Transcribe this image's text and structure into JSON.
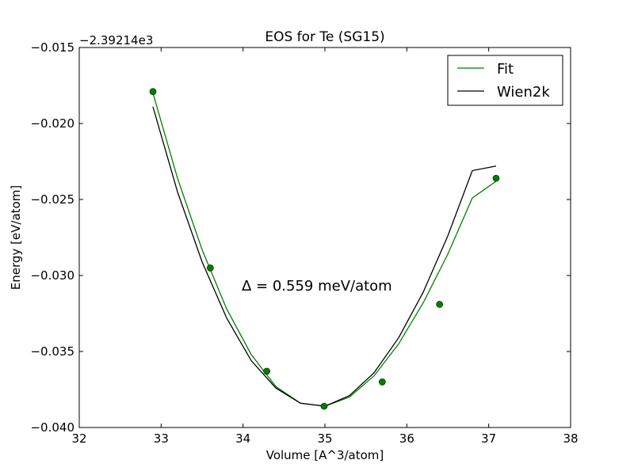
{
  "chart_data": {
    "type": "line",
    "title": "EOS for Te (SG15)",
    "xlabel": "Volume [A^3/atom]",
    "ylabel": "Energy [eV/atom]",
    "y_offset_label": "−2.39214e3",
    "xlim": [
      32,
      38
    ],
    "ylim": [
      -0.04,
      -0.015
    ],
    "x_ticks": [
      32,
      33,
      34,
      35,
      36,
      37,
      38
    ],
    "x_tick_labels": [
      "32",
      "33",
      "34",
      "35",
      "36",
      "37",
      "38"
    ],
    "y_ticks": [
      -0.04,
      -0.035,
      -0.03,
      -0.025,
      -0.02,
      -0.015
    ],
    "y_tick_labels": [
      "−0.040",
      "−0.035",
      "−0.030",
      "−0.025",
      "−0.020",
      "−0.015"
    ],
    "annotation": "Δ = 0.559 meV/atom",
    "legend_position": "top-right",
    "grid": false,
    "points": {
      "color": "#008000",
      "x": [
        32.9,
        33.6,
        34.29,
        34.99,
        35.7,
        36.4,
        37.09
      ],
      "y": [
        -0.0179,
        -0.0295,
        -0.0363,
        -0.0386,
        -0.037,
        -0.0319,
        -0.0236
      ]
    },
    "series": [
      {
        "name": "Fit",
        "color": "#008000",
        "x": [
          32.9,
          33.2,
          33.5,
          33.8,
          34.1,
          34.4,
          34.7,
          35.0,
          35.3,
          35.6,
          35.9,
          36.2,
          36.5,
          36.8,
          37.09
        ],
        "y": [
          -0.018,
          -0.0236,
          -0.0283,
          -0.0322,
          -0.0352,
          -0.0373,
          -0.0384,
          -0.0386,
          -0.038,
          -0.0366,
          -0.0345,
          -0.0318,
          -0.0286,
          -0.0249,
          -0.0238
        ]
      },
      {
        "name": "Wien2k",
        "color": "#000000",
        "x": [
          32.9,
          33.2,
          33.5,
          33.8,
          34.1,
          34.4,
          34.7,
          35.0,
          35.3,
          35.6,
          35.9,
          36.2,
          36.5,
          36.8,
          37.09
        ],
        "y": [
          -0.0189,
          -0.0245,
          -0.0291,
          -0.0328,
          -0.0356,
          -0.0374,
          -0.0384,
          -0.0386,
          -0.0379,
          -0.0364,
          -0.0341,
          -0.0311,
          -0.0274,
          -0.0231,
          -0.0228
        ]
      }
    ]
  }
}
